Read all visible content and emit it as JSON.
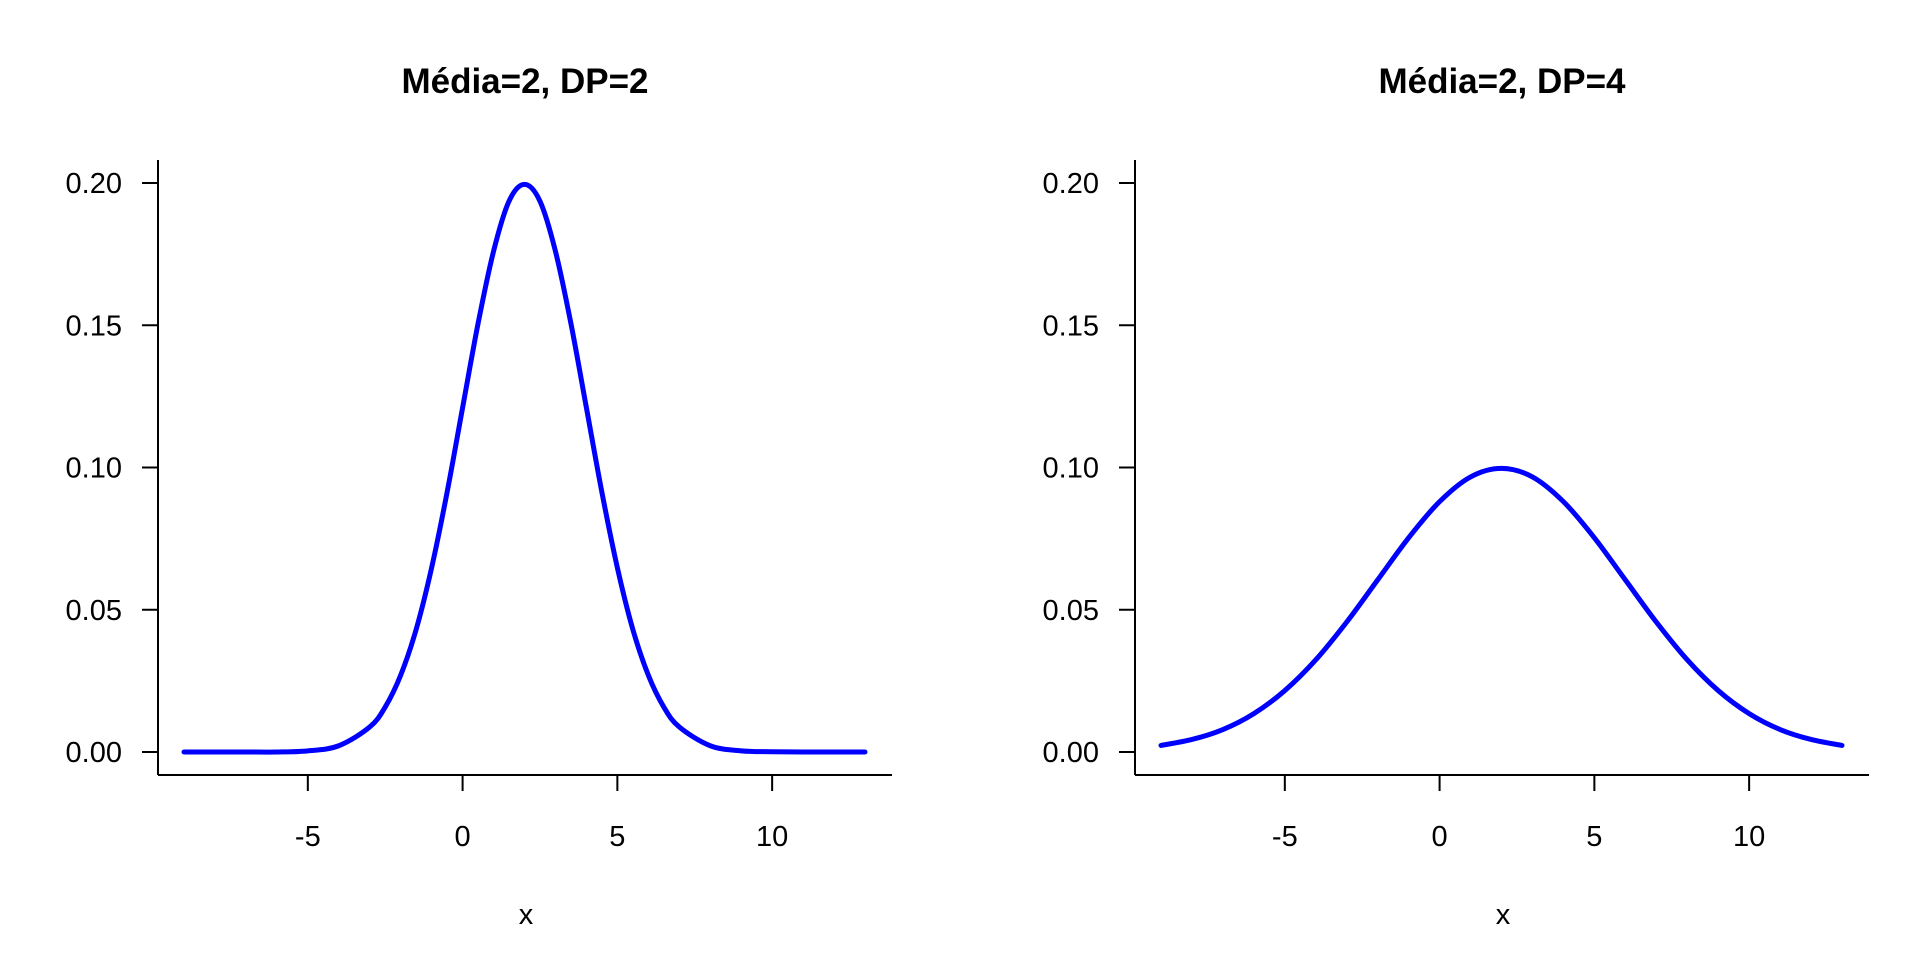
{
  "chart_data": [
    {
      "type": "line",
      "title": "Média=2, DP=2",
      "xlabel": "x",
      "ylabel": "",
      "xlim": [
        -9,
        13
      ],
      "ylim": [
        0,
        0.2
      ],
      "xticks": [
        -5,
        0,
        5,
        10
      ],
      "xtick_labels": [
        "-5",
        "0",
        "5",
        "10"
      ],
      "yticks": [
        0,
        0.05,
        0.1,
        0.15,
        0.2
      ],
      "ytick_labels": [
        "0.00",
        "0.05",
        "0.10",
        "0.15",
        "0.20"
      ],
      "grid": false,
      "legend": "none",
      "series": [
        {
          "color": "#0000ff",
          "x": [
            -9,
            -8,
            -7,
            -6,
            -5,
            -4,
            -3,
            -2.5,
            -2,
            -1.5,
            -1,
            -0.5,
            0,
            0.5,
            1,
            1.5,
            2,
            2.5,
            3,
            3.5,
            4,
            4.5,
            5,
            5.5,
            6,
            6.5,
            7,
            8,
            9,
            10,
            11,
            12,
            13
          ],
          "y": [
            0.0,
            0.0,
            0.0,
            0.0,
            0.0004,
            0.0022,
            0.0088,
            0.0158,
            0.027,
            0.0431,
            0.0648,
            0.0913,
            0.121,
            0.1506,
            0.176,
            0.1936,
            0.1995,
            0.1936,
            0.176,
            0.1506,
            0.121,
            0.0913,
            0.0648,
            0.0431,
            0.027,
            0.0158,
            0.0088,
            0.0022,
            0.0004,
            0.0001,
            0.0,
            0.0,
            0.0
          ]
        }
      ]
    },
    {
      "type": "line",
      "title": "Média=2, DP=4",
      "xlabel": "x",
      "ylabel": "",
      "xlim": [
        -9,
        13
      ],
      "ylim": [
        0,
        0.2
      ],
      "xticks": [
        -5,
        0,
        5,
        10
      ],
      "xtick_labels": [
        "-5",
        "0",
        "5",
        "10"
      ],
      "yticks": [
        0,
        0.05,
        0.1,
        0.15,
        0.2
      ],
      "ytick_labels": [
        "0.00",
        "0.05",
        "0.10",
        "0.15",
        "0.20"
      ],
      "grid": false,
      "legend": "none",
      "series": [
        {
          "color": "#0000ff",
          "x": [
            -9,
            -8,
            -7,
            -6,
            -5,
            -4,
            -3,
            -2,
            -1,
            0,
            1,
            2,
            3,
            4,
            5,
            6,
            7,
            8,
            9,
            10,
            11,
            12,
            13
          ],
          "y": [
            0.0023,
            0.0044,
            0.0079,
            0.0135,
            0.0216,
            0.0324,
            0.0457,
            0.0605,
            0.0753,
            0.088,
            0.0967,
            0.0997,
            0.0967,
            0.088,
            0.0753,
            0.0605,
            0.0457,
            0.0324,
            0.0216,
            0.0135,
            0.0079,
            0.0044,
            0.0023
          ]
        }
      ]
    }
  ]
}
